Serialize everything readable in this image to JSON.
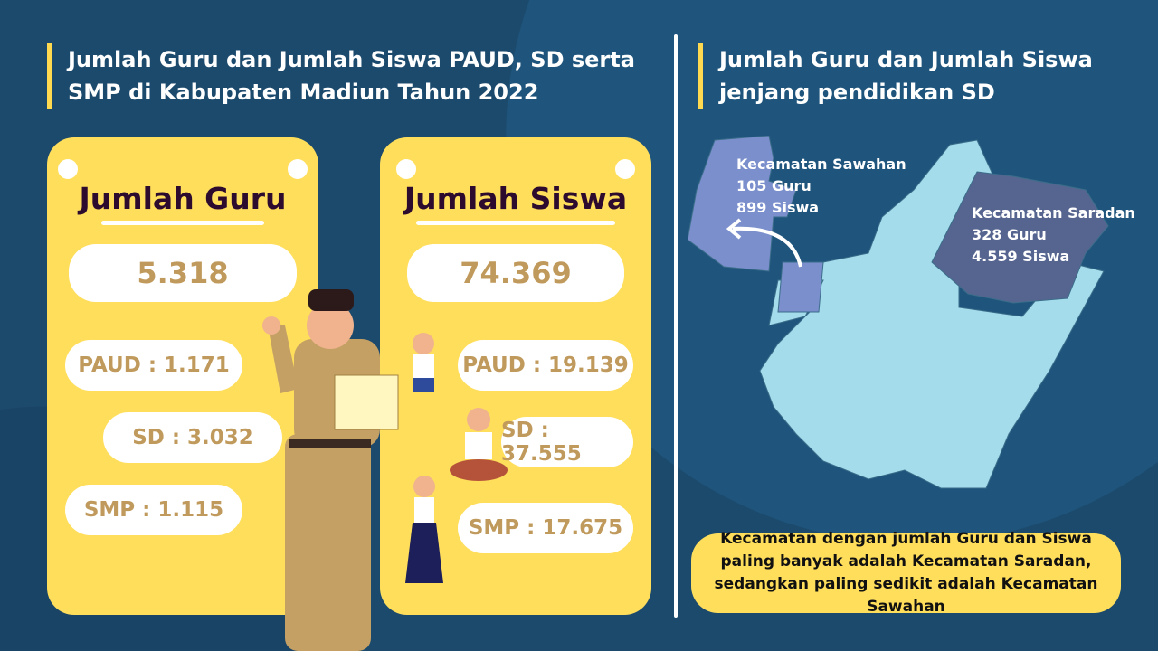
{
  "left_title": "Jumlah Guru dan Jumlah Siswa PAUD, SD serta SMP di Kabupaten Madiun Tahun 2022",
  "right_title": "Jumlah Guru dan Jumlah Siswa jenjang pendidikan SD",
  "guru": {
    "heading": "Jumlah Guru",
    "total": "5.318",
    "paud": "PAUD : 1.171",
    "sd": "SD : 3.032",
    "smp": "SMP : 1.115"
  },
  "siswa": {
    "heading": "Jumlah Siswa",
    "total": "74.369",
    "paud": "PAUD : 19.139",
    "sd": "SD : 37.555",
    "smp": "SMP : 17.675"
  },
  "map": {
    "sawahan": {
      "name": "Kecamatan Sawahan",
      "guru": "105 Guru",
      "siswa": "899 Siswa"
    },
    "saradan": {
      "name": "Kecamatan Saradan",
      "guru": "328 Guru",
      "siswa": "4.559 Siswa"
    }
  },
  "note": "Kecamatan dengan jumlah Guru dan Siswa paling banyak adalah Kecamatan Saradan, sedangkan paling sedikit adalah Kecamatan Sawahan",
  "colors": {
    "background": "#1c4a6d",
    "card": "#ffde5c",
    "value_text": "#c09a5c",
    "map_base": "#a4dcec",
    "sawahan": "#7a8fcc",
    "saradan": "#56658f"
  }
}
